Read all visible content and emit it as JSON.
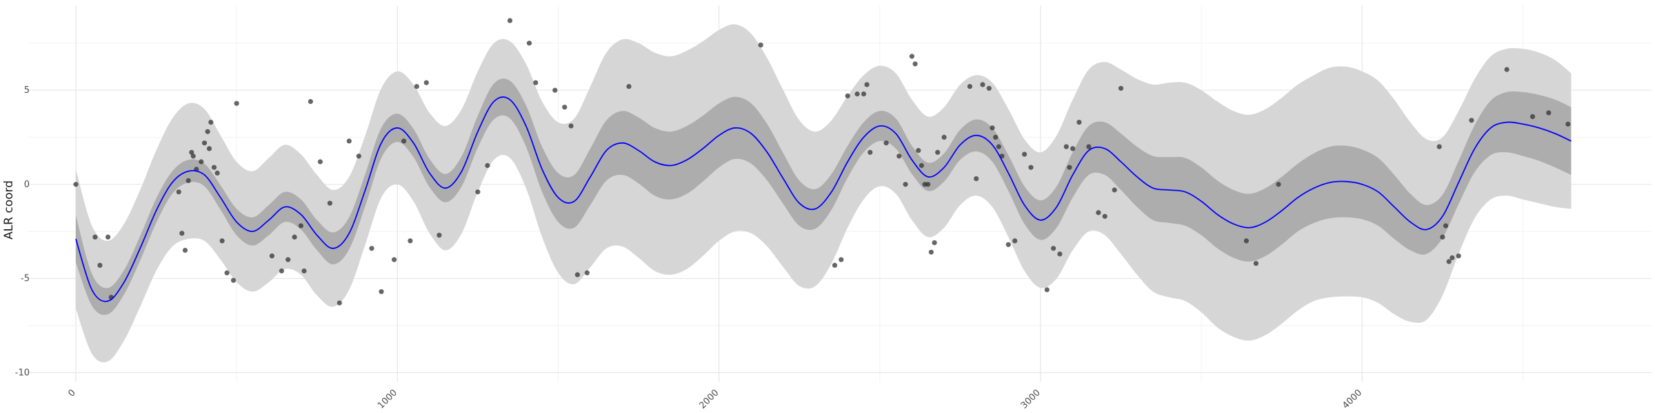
{
  "chart_data": {
    "type": "line",
    "title": "",
    "xlabel": "",
    "ylabel": "ALR coord",
    "xlim": [
      -150,
      4900
    ],
    "ylim": [
      -10.5,
      9.5
    ],
    "x_ticks": [
      0,
      1000,
      2000,
      3000,
      4000
    ],
    "x_tick_labels": [
      "0",
      "1000",
      "2000",
      "3000",
      "4000"
    ],
    "y_ticks": [
      -10,
      -5,
      0,
      5
    ],
    "y_tick_labels": [
      "-10",
      "-5",
      "0",
      "5"
    ],
    "grid": true,
    "legend": "none",
    "colors": {
      "mean_line": "#0000ff",
      "inner_band": "#adadad",
      "outer_band": "#d6d6d6",
      "points": "#333333",
      "grid_major": "#e5e5e5",
      "grid_minor": "#f2f2f2"
    },
    "mean": {
      "x": [
        0,
        50,
        100,
        150,
        200,
        250,
        300,
        350,
        400,
        450,
        500,
        550,
        600,
        650,
        700,
        750,
        800,
        850,
        900,
        950,
        1000,
        1050,
        1100,
        1150,
        1200,
        1250,
        1300,
        1350,
        1400,
        1450,
        1500,
        1550,
        1600,
        1650,
        1700,
        1750,
        1800,
        1850,
        1900,
        1950,
        2000,
        2050,
        2100,
        2150,
        2200,
        2250,
        2300,
        2350,
        2400,
        2450,
        2500,
        2550,
        2600,
        2650,
        2700,
        2750,
        2800,
        2850,
        2900,
        2950,
        3000,
        3050,
        3100,
        3150,
        3200,
        3250,
        3300,
        3350,
        3400,
        3450,
        3500,
        3550,
        3600,
        3650,
        3700,
        3750,
        3800,
        3850,
        3900,
        3950,
        4000,
        4050,
        4100,
        4150,
        4200,
        4250,
        4300,
        4350,
        4400,
        4450,
        4500,
        4550,
        4600,
        4650
      ],
      "y": [
        -2.9,
        -5.6,
        -6.2,
        -5.2,
        -3.4,
        -1.4,
        0.1,
        0.7,
        0.5,
        -0.7,
        -2.0,
        -2.5,
        -1.9,
        -1.2,
        -1.6,
        -2.7,
        -3.4,
        -2.6,
        -0.3,
        2.2,
        3.0,
        2.2,
        0.6,
        -0.2,
        0.7,
        2.8,
        4.4,
        4.5,
        3.1,
        0.8,
        -0.7,
        -0.9,
        0.4,
        1.8,
        2.2,
        1.8,
        1.2,
        1.0,
        1.3,
        1.9,
        2.6,
        3.0,
        2.7,
        1.7,
        0.3,
        -1.0,
        -1.3,
        -0.4,
        1.2,
        2.5,
        3.1,
        2.7,
        1.3,
        0.4,
        0.9,
        2.1,
        2.6,
        2.1,
        0.6,
        -1.1,
        -1.9,
        -1.2,
        0.5,
        1.8,
        1.9,
        1.2,
        0.4,
        -0.2,
        -0.3,
        -0.4,
        -0.9,
        -1.6,
        -2.1,
        -2.3,
        -2.0,
        -1.4,
        -0.7,
        -0.2,
        0.1,
        0.15,
        0.0,
        -0.4,
        -1.2,
        -2.0,
        -2.4,
        -1.7,
        0.1,
        1.9,
        3.0,
        3.3,
        3.2,
        3.0,
        2.7,
        2.3
      ]
    },
    "inner_band_halfwidth": [
      1.25,
      0.85,
      0.7,
      0.65,
      0.65,
      0.65,
      0.6,
      0.6,
      0.6,
      0.65,
      0.7,
      0.75,
      0.8,
      0.8,
      0.8,
      0.8,
      0.85,
      0.85,
      0.85,
      0.8,
      0.75,
      0.75,
      0.75,
      0.75,
      0.8,
      0.85,
      0.95,
      1.0,
      1.1,
      1.2,
      1.3,
      1.4,
      1.5,
      1.6,
      1.7,
      1.75,
      1.8,
      1.8,
      1.8,
      1.75,
      1.7,
      1.65,
      1.6,
      1.5,
      1.35,
      1.2,
      1.05,
      0.95,
      0.85,
      0.8,
      0.8,
      0.8,
      0.75,
      0.75,
      0.75,
      0.8,
      0.85,
      0.9,
      0.95,
      1.0,
      1.05,
      1.1,
      1.2,
      1.3,
      1.4,
      1.5,
      1.6,
      1.7,
      1.75,
      1.8,
      1.8,
      1.8,
      1.8,
      1.8,
      1.8,
      1.8,
      1.8,
      1.85,
      1.9,
      1.9,
      1.85,
      1.8,
      1.7,
      1.5,
      1.3,
      1.15,
      1.15,
      1.25,
      1.45,
      1.6,
      1.7,
      1.75,
      1.8,
      1.8
    ],
    "outer_band_halfwidth": [
      3.7,
      3.4,
      3.2,
      3.1,
      3.1,
      3.2,
      3.4,
      3.6,
      3.5,
      3.3,
      3.2,
      3.2,
      3.3,
      3.3,
      3.2,
      3.2,
      3.1,
      3.0,
      2.9,
      2.9,
      3.0,
      3.1,
      3.2,
      3.3,
      3.3,
      3.2,
      3.1,
      3.1,
      3.3,
      3.6,
      4.0,
      4.4,
      4.8,
      5.2,
      5.5,
      5.7,
      5.8,
      5.8,
      5.8,
      5.7,
      5.6,
      5.5,
      5.3,
      5.0,
      4.7,
      4.4,
      4.1,
      3.8,
      3.5,
      3.3,
      3.2,
      3.2,
      3.2,
      3.2,
      3.2,
      3.2,
      3.2,
      3.3,
      3.4,
      3.5,
      3.6,
      3.8,
      4.0,
      4.3,
      4.6,
      4.9,
      5.2,
      5.5,
      5.7,
      5.8,
      5.9,
      6.0,
      6.0,
      6.0,
      6.0,
      6.0,
      6.0,
      6.0,
      6.1,
      6.1,
      6.0,
      5.9,
      5.7,
      5.3,
      4.8,
      4.2,
      3.8,
      3.7,
      3.8,
      3.9,
      4.0,
      4.0,
      3.9,
      3.6
    ],
    "points": {
      "x": [
        0,
        60,
        75,
        100,
        110,
        320,
        330,
        340,
        350,
        360,
        365,
        375,
        390,
        400,
        410,
        415,
        420,
        430,
        440,
        455,
        470,
        490,
        500,
        610,
        640,
        660,
        680,
        700,
        710,
        730,
        760,
        790,
        820,
        850,
        880,
        920,
        950,
        990,
        1020,
        1040,
        1060,
        1090,
        1130,
        1250,
        1280,
        1350,
        1410,
        1430,
        1490,
        1520,
        1540,
        1560,
        1590,
        1720,
        2130,
        2360,
        2380,
        2400,
        2430,
        2450,
        2460,
        2470,
        2520,
        2560,
        2580,
        2600,
        2610,
        2620,
        2630,
        2640,
        2650,
        2660,
        2670,
        2680,
        2700,
        2780,
        2800,
        2820,
        2840,
        2850,
        2860,
        2870,
        2880,
        2900,
        2920,
        2950,
        2970,
        3020,
        3040,
        3060,
        3080,
        3090,
        3100,
        3120,
        3150,
        3180,
        3200,
        3230,
        3250,
        3640,
        3670,
        3740,
        4240,
        4250,
        4260,
        4270,
        4280,
        4300,
        4340,
        4450,
        4530,
        4580,
        4640
      ],
      "y": [
        0.0,
        -2.8,
        -4.3,
        -2.8,
        -6.0,
        -0.4,
        -2.6,
        -3.5,
        0.2,
        1.7,
        1.5,
        0.8,
        1.2,
        2.2,
        2.8,
        1.9,
        3.3,
        0.9,
        0.6,
        -3.0,
        -4.7,
        -5.1,
        4.3,
        -3.8,
        -4.6,
        -4.0,
        -2.8,
        -2.2,
        -4.6,
        4.4,
        1.2,
        -1.0,
        -6.3,
        2.3,
        1.5,
        -3.4,
        -5.7,
        -4.0,
        2.3,
        -3.0,
        5.2,
        5.4,
        -2.7,
        -0.4,
        1.0,
        8.7,
        7.5,
        5.4,
        5.0,
        4.1,
        3.1,
        -4.8,
        -4.7,
        5.2,
        7.4,
        -4.3,
        -4.0,
        4.7,
        4.8,
        4.8,
        5.3,
        1.7,
        2.2,
        1.5,
        0.0,
        6.8,
        6.4,
        1.8,
        1.0,
        0.0,
        0.0,
        -3.6,
        -3.1,
        1.7,
        2.5,
        5.2,
        0.3,
        5.3,
        5.1,
        3.0,
        2.5,
        2.0,
        1.5,
        -3.2,
        -3.0,
        1.6,
        0.9,
        -5.6,
        -3.4,
        -3.7,
        2.0,
        0.9,
        1.9,
        3.3,
        2.0,
        -1.5,
        -1.7,
        -0.3,
        5.1,
        -3.0,
        -4.2,
        0.0,
        2.0,
        -2.8,
        -2.2,
        -4.1,
        -3.9,
        -3.8,
        3.4,
        6.1,
        3.6,
        3.8,
        3.2
      ]
    }
  }
}
